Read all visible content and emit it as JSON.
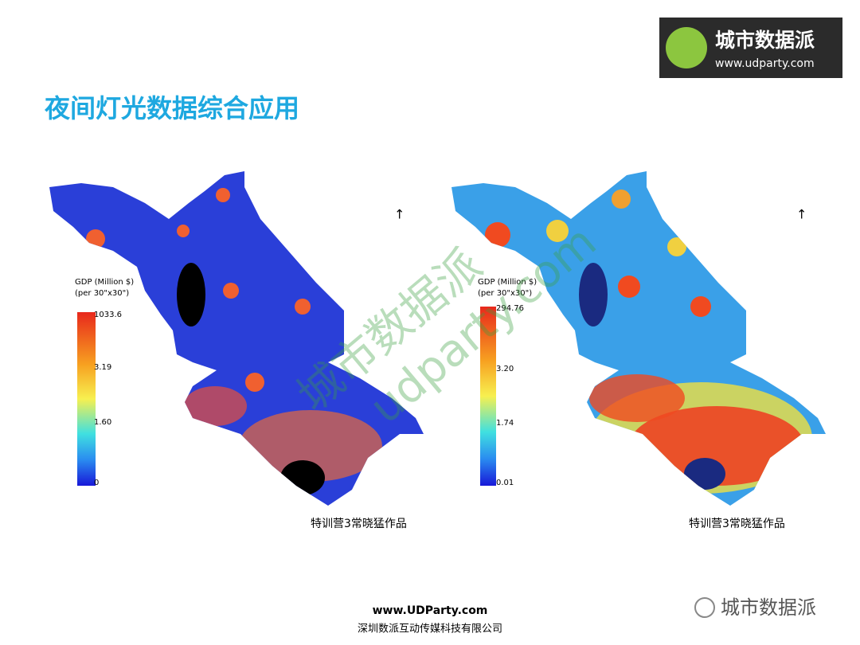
{
  "header": {
    "title": "夜间灯光数据综合应用",
    "logo_name": "城市数据派",
    "logo_url": "www.udparty.com"
  },
  "watermark": {
    "name": "城市数据派",
    "url": "udparty.com"
  },
  "maps": [
    {
      "legend_title": "GDP  (Million $)",
      "legend_unit": "(per 30\"x30\")",
      "legend_ticks": [
        "1033.6",
        "3.19",
        "1.60",
        "0"
      ],
      "caption": "特训营3常晓猛作品"
    },
    {
      "legend_title": "GDP (Million $)",
      "legend_unit": "(per 30\"x30\")",
      "legend_ticks": [
        "294.76",
        "3.20",
        "1.74",
        "0.01"
      ],
      "caption": "特训营3常晓猛作品"
    }
  ],
  "footer": {
    "url": "www.UDParty.com",
    "company": "深圳数派互动传媒科技有限公司",
    "wechat": "城市数据派"
  }
}
